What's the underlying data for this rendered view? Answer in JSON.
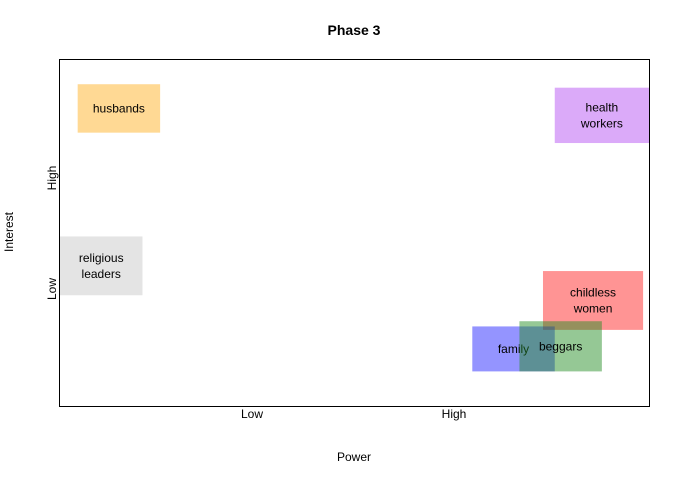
{
  "chart_data": {
    "type": "scatter",
    "title": "Phase 3",
    "xlabel": "Power",
    "ylabel": "Interest",
    "x_ticks": [
      "Low",
      "High"
    ],
    "y_ticks": [
      "Low",
      "High"
    ],
    "xlim": [
      0,
      1
    ],
    "ylim": [
      0,
      1
    ],
    "grid": false,
    "legend": "none",
    "stakeholders": [
      {
        "label": [
          "husbands"
        ],
        "x": [
          0.03,
          0.17
        ],
        "y": [
          0.79,
          0.93
        ],
        "color": "#ffa500",
        "opacity": 0.42
      },
      {
        "label": [
          "health",
          "workers"
        ],
        "x": [
          0.84,
          1.0
        ],
        "y": [
          0.76,
          0.92
        ],
        "color": "#a020f0",
        "opacity": 0.38
      },
      {
        "label": [
          "religious",
          "leaders"
        ],
        "x": [
          0.0,
          0.14
        ],
        "y": [
          0.32,
          0.49
        ],
        "color": "#bebebe",
        "opacity": 0.42
      },
      {
        "label": [
          "childless",
          "women"
        ],
        "x": [
          0.82,
          0.99
        ],
        "y": [
          0.22,
          0.39
        ],
        "color": "#ff0000",
        "opacity": 0.42
      },
      {
        "label": [
          "family"
        ],
        "x": [
          0.7,
          0.84
        ],
        "y": [
          0.1,
          0.23
        ],
        "color": "#0000ff",
        "opacity": 0.42
      },
      {
        "label": [
          "beggars"
        ],
        "x": [
          0.78,
          0.92
        ],
        "y": [
          0.1,
          0.245
        ],
        "color": "#228b22",
        "opacity": 0.48
      }
    ]
  }
}
